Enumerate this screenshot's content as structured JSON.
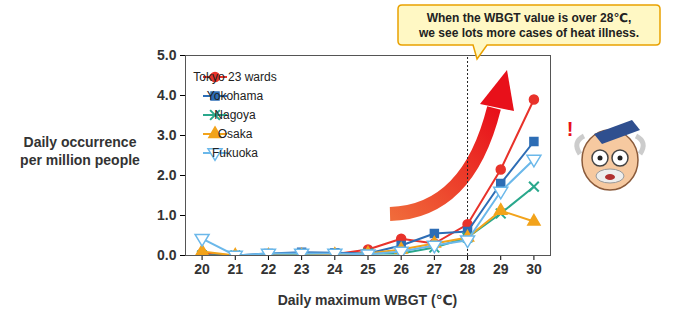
{
  "chart_data": {
    "type": "line",
    "x_label": "Daily maximum WBGT (℃)",
    "y_label": "Daily occurrence per million people",
    "x": [
      20,
      21,
      22,
      23,
      24,
      25,
      26,
      27,
      28,
      29,
      30
    ],
    "series": [
      {
        "name": "Tokyo 23 wards",
        "color": "#e8322a",
        "marker": "circle",
        "values": [
          0.05,
          0.0,
          0.02,
          0.03,
          0.03,
          0.15,
          0.42,
          0.3,
          0.78,
          2.15,
          3.9
        ]
      },
      {
        "name": "Yokohama",
        "color": "#2d6db5",
        "marker": "square",
        "values": [
          0.0,
          0.0,
          0.05,
          0.08,
          0.07,
          0.05,
          0.25,
          0.55,
          0.6,
          1.8,
          2.85
        ]
      },
      {
        "name": "Nagoya",
        "color": "#2aa88c",
        "marker": "times",
        "values": [
          0.0,
          0.0,
          0.0,
          0.02,
          0.02,
          0.05,
          0.05,
          0.2,
          0.45,
          1.05,
          1.72
        ]
      },
      {
        "name": "Osaka",
        "color": "#f2a31b",
        "marker": "triangle",
        "values": [
          0.1,
          0.0,
          0.0,
          0.0,
          0.02,
          0.05,
          0.15,
          0.3,
          0.45,
          1.12,
          0.85
        ]
      },
      {
        "name": "Fukuoka",
        "color": "#6bb8ea",
        "marker": "triangle-down",
        "values": [
          0.42,
          0.0,
          0.05,
          0.05,
          0.05,
          0.03,
          0.1,
          0.25,
          0.38,
          1.6,
          2.4
        ]
      }
    ],
    "xlim": [
      19.5,
      30.5
    ],
    "xticks": [
      20,
      21,
      22,
      23,
      24,
      25,
      26,
      27,
      28,
      29,
      30
    ],
    "ylim": [
      0,
      5
    ],
    "yticks": [
      {
        "value": 0,
        "label": "0.0"
      },
      {
        "value": 1,
        "label": "1.0"
      },
      {
        "value": 2,
        "label": "2.0"
      },
      {
        "value": 3,
        "label": "3.0"
      },
      {
        "value": 4,
        "label": "4.0"
      },
      {
        "value": 5,
        "label": "5.0"
      }
    ],
    "grid": false,
    "legend": "top-left",
    "annotation": {
      "text": "When the WBGT value is over 28℃, we see lots more cases of heat illness.",
      "x": 28
    },
    "icon_label": "!"
  }
}
